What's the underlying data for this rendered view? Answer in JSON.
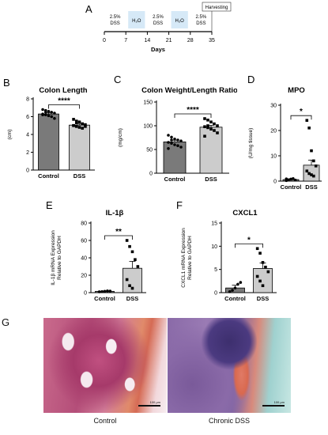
{
  "timeline": {
    "panel": "A",
    "ticks": [
      "0",
      "7",
      "14",
      "21",
      "28",
      "35"
    ],
    "xlabel": "Days",
    "phases": [
      {
        "label": "2.5%\nDSS",
        "start": 0,
        "end": 7,
        "color": "#ffffff"
      },
      {
        "label": "H₂O",
        "start": 7,
        "end": 14,
        "color": "#d6e9f7"
      },
      {
        "label": "2.5%\nDSS",
        "start": 14,
        "end": 21,
        "color": "#ffffff"
      },
      {
        "label": "H₂O",
        "start": 21,
        "end": 28,
        "color": "#d6e9f7"
      },
      {
        "label": "2.5%\nDSS",
        "start": 28,
        "end": 35,
        "color": "#ffffff"
      }
    ],
    "harvest_label": "Harvesting"
  },
  "chart_data": [
    {
      "panel": "B",
      "type": "bar",
      "title": "Colon Length",
      "ylabel": "(cm)",
      "categories": [
        "Control",
        "DSS"
      ],
      "values": [
        6.3,
        5.05
      ],
      "errors": [
        0.12,
        0.12
      ],
      "ylim": [
        0,
        8
      ],
      "yticks": [
        "0",
        "2",
        "4",
        "6",
        "8"
      ],
      "points": [
        [
          6.8,
          6.7,
          6.6,
          6.5,
          6.4,
          6.3,
          6.2,
          6.1,
          6.0,
          5.8,
          6.2,
          6.5
        ],
        [
          5.7,
          5.5,
          5.4,
          5.2,
          5.1,
          5.0,
          4.9,
          4.8,
          4.7,
          4.9,
          5.0,
          5.3
        ]
      ],
      "significance": "****",
      "colors": [
        "#7a7a7a",
        "#cccccc"
      ]
    },
    {
      "panel": "C",
      "type": "bar",
      "title": "Colon Weight/Length Ratio",
      "ylabel": "(mg/cm)",
      "categories": [
        "Control",
        "DSS"
      ],
      "values": [
        66,
        97
      ],
      "errors": [
        3.5,
        4
      ],
      "ylim": [
        0,
        150
      ],
      "yticks": [
        "0",
        "50",
        "100",
        "150"
      ],
      "points": [
        [
          80,
          76,
          72,
          70,
          68,
          65,
          63,
          60,
          58,
          55,
          52,
          70
        ],
        [
          115,
          112,
          108,
          104,
          100,
          98,
          96,
          93,
          90,
          85,
          78,
          100
        ]
      ],
      "significance": "****",
      "colors": [
        "#7a7a7a",
        "#cccccc"
      ]
    },
    {
      "panel": "D",
      "type": "bar",
      "title": "MPO",
      "ylabel": "(U/mg tissue)",
      "categories": [
        "Control",
        "DSS"
      ],
      "values": [
        0.6,
        6.3
      ],
      "errors": [
        0.3,
        2.0
      ],
      "ylim": [
        0,
        30
      ],
      "yticks": [
        "0",
        "10",
        "20",
        "30"
      ],
      "points": [
        [
          0.2,
          0.5,
          0.8,
          1.0,
          0.4,
          0.9
        ],
        [
          24,
          21,
          12,
          8,
          6,
          4,
          3,
          2.5,
          2
        ]
      ],
      "significance": "*",
      "colors": [
        "#7a7a7a",
        "#cccccc"
      ]
    },
    {
      "panel": "E",
      "type": "bar",
      "title": "IL-1β",
      "ylabel": "IL-1β mRNA Expression\nRelative to GAPDH",
      "categories": [
        "Control",
        "DSS"
      ],
      "values": [
        1.5,
        28
      ],
      "errors": [
        0.4,
        8
      ],
      "ylim": [
        0,
        80
      ],
      "yticks": [
        "0",
        "20",
        "40",
        "60",
        "80"
      ],
      "points": [
        [
          1.0,
          1.2,
          1.5,
          2.0,
          1.8
        ],
        [
          60,
          53,
          47,
          38,
          30,
          15,
          8,
          5
        ]
      ],
      "significance": "**",
      "colors": [
        "#7a7a7a",
        "#cccccc"
      ]
    },
    {
      "panel": "F",
      "type": "bar",
      "title": "CXCL1",
      "ylabel": "CXCL1 mRNA Expression\nRelative to GAPDH",
      "categories": [
        "Control",
        "DSS"
      ],
      "values": [
        1.0,
        5.2
      ],
      "errors": [
        0.6,
        1.2
      ],
      "ylim": [
        0,
        15
      ],
      "yticks": [
        "0",
        "5",
        "10",
        "15"
      ],
      "points": [
        [
          0.2,
          0.5,
          1.0,
          1.8,
          2.2
        ],
        [
          9.5,
          8.5,
          6.5,
          5.5,
          4.5,
          3.5,
          2.5,
          1.5
        ]
      ],
      "significance": "*",
      "colors": [
        "#7a7a7a",
        "#cccccc"
      ]
    }
  ],
  "histology": {
    "panel": "G",
    "left_caption": "Control",
    "right_caption": "Chronic  DSS",
    "scale_left": "100 μm",
    "scale_right": "100 μm"
  }
}
